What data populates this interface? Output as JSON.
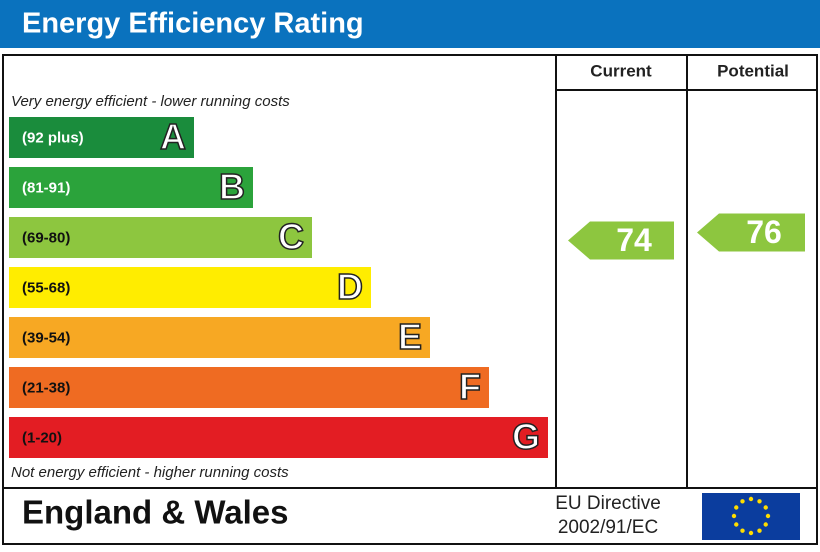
{
  "header": {
    "title": "Energy Efficiency Rating"
  },
  "columns": {
    "current": "Current",
    "potential": "Potential"
  },
  "top_note": "Very energy efficient - lower running costs",
  "bands": [
    {
      "range": "(92 plus)",
      "letter": "A",
      "color": "#1a8c3c"
    },
    {
      "range": "(81-91)",
      "letter": "B",
      "color": "#2ba33b"
    },
    {
      "range": "(69-80)",
      "letter": "C",
      "color": "#8dc63f"
    },
    {
      "range": "(55-68)",
      "letter": "D",
      "color": "#ffed00"
    },
    {
      "range": "(39-54)",
      "letter": "E",
      "color": "#f7a823"
    },
    {
      "range": "(21-38)",
      "letter": "F",
      "color": "#ef6b22"
    },
    {
      "range": "(1-20)",
      "letter": "G",
      "color": "#e31d23"
    }
  ],
  "bottom_note": "Not energy efficient - higher running costs",
  "ratings": {
    "current": 74,
    "potential": 76
  },
  "footer": {
    "region": "England & Wales",
    "directive": [
      "EU Directive",
      "2002/91/EC"
    ]
  }
}
